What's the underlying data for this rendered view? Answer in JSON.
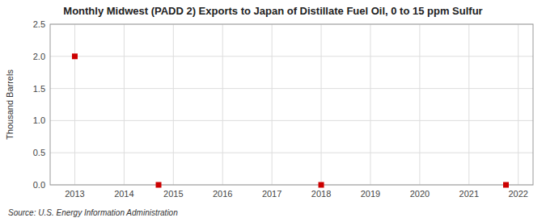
{
  "chart_data": {
    "type": "scatter",
    "title": "Monthly Midwest (PADD 2) Exports to Japan of Distillate Fuel Oil, 0 to 15 ppm Sulfur",
    "y_label": "Thousand Barrels",
    "source": "Source: U.S. Energy Information Administration",
    "x": [
      2013.0,
      2014.7,
      2018.0,
      2021.75
    ],
    "values": [
      2.0,
      0.0,
      0.0,
      0.0
    ],
    "color": "#cc0000",
    "marker": "square",
    "xlim": [
      2012.5,
      2022.3
    ],
    "ylim": [
      0.0,
      2.5
    ],
    "xticks": [
      2013,
      2014,
      2015,
      2016,
      2017,
      2018,
      2019,
      2020,
      2021,
      2022
    ],
    "yticks": [
      {
        "value": 0.0,
        "label": "0.0"
      },
      0.5,
      {
        "value": 1.0,
        "label": "1.0"
      },
      1.5,
      {
        "value": 2.0,
        "label": "2.0"
      },
      2.5
    ],
    "grid": true
  }
}
